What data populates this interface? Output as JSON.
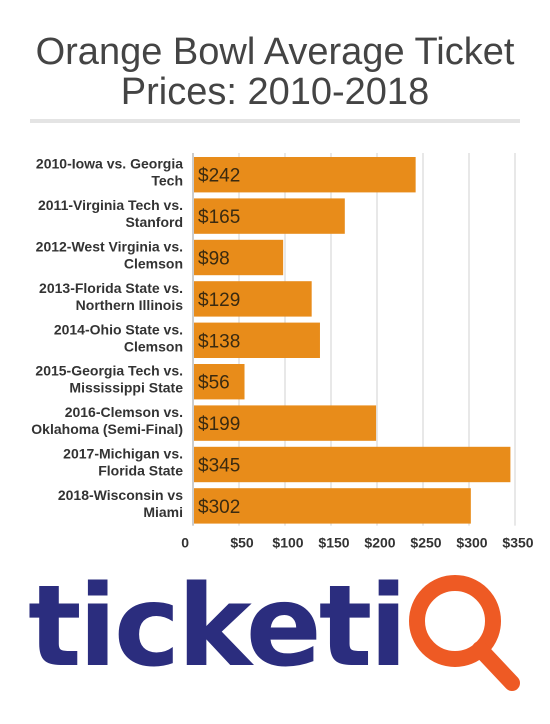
{
  "title_lines": [
    "Orange Bowl Average Ticket",
    "Prices: 2010-2018"
  ],
  "colors": {
    "bar": "#e88c1a",
    "grid": "#d0d0d0",
    "logo_blue": "#2b2d7e",
    "logo_orange": "#ee5a24"
  },
  "chart_data": {
    "type": "bar",
    "orientation": "horizontal",
    "title": "Orange Bowl Average Ticket Prices: 2010-2018",
    "categories": [
      [
        "2010-Iowa vs. Georgia",
        "Tech"
      ],
      [
        "2011-Virginia Tech vs.",
        "Stanford"
      ],
      [
        "2012-West Virginia vs.",
        "Clemson"
      ],
      [
        "2013-Florida State vs.",
        "Northern Illinois"
      ],
      [
        "2014-Ohio State vs.",
        "Clemson"
      ],
      [
        "2015-Georgia Tech vs.",
        "Mississippi State"
      ],
      [
        "2016-Clemson vs.",
        "Oklahoma (Semi-Final)"
      ],
      [
        "2017-Michigan vs.",
        "Florida State"
      ],
      [
        "2018-Wisconsin vs",
        "Miami"
      ]
    ],
    "values": [
      242,
      165,
      98,
      129,
      138,
      56,
      199,
      345,
      302
    ],
    "value_labels": [
      "$242",
      "$165",
      "$98",
      "$129",
      "$138",
      "$56",
      "$199",
      "$345",
      "$302"
    ],
    "xlim": [
      0,
      350
    ],
    "xticks": [
      0,
      50,
      100,
      150,
      200,
      250,
      300,
      350
    ],
    "xtick_labels": [
      "0",
      "$50",
      "$100",
      "$150",
      "$200",
      "$250",
      "$300",
      "$350"
    ],
    "grid": true,
    "legend": "none"
  },
  "logo": {
    "text_part": "ticketi",
    "q_part": "Q"
  }
}
